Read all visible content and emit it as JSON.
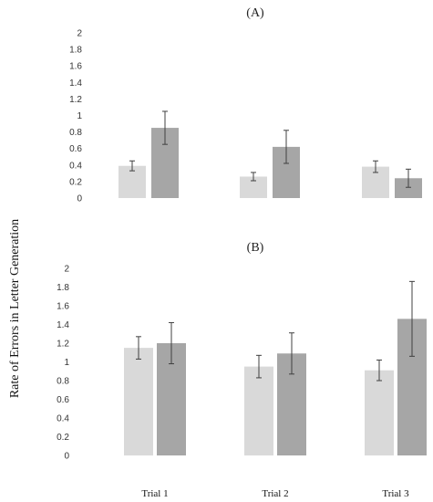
{
  "ylabel": "Rate of Errors in Letter Generation",
  "colors": {
    "series1": "#d9d9d9",
    "series2": "#a6a6a6",
    "errorbar": "#404040"
  },
  "chart_data": [
    {
      "type": "bar",
      "title": "(A)",
      "categories": [
        "Trial 1",
        "Trial 2",
        "Trial 3"
      ],
      "ylim": [
        0,
        2
      ],
      "yticks": [
        "0",
        "0.2",
        "0.4",
        "0.6",
        "0.8",
        "1",
        "1.2",
        "1.4",
        "1.6",
        "1.8",
        "2"
      ],
      "grid": false,
      "series": [
        {
          "values": [
            0.39,
            0.26,
            0.38
          ],
          "errors": [
            0.06,
            0.05,
            0.07
          ]
        },
        {
          "values": [
            0.85,
            0.62,
            0.24
          ],
          "errors": [
            0.2,
            0.2,
            0.11
          ]
        }
      ]
    },
    {
      "type": "bar",
      "title": "(B)",
      "categories": [
        "Trial 1",
        "Trial 2",
        "Trial 3"
      ],
      "ylim": [
        0,
        2
      ],
      "yticks": [
        "0",
        "0.2",
        "0.4",
        "0.6",
        "0.8",
        "1",
        "1.2",
        "1.4",
        "1.6",
        "1.8",
        "2"
      ],
      "grid": false,
      "series": [
        {
          "values": [
            1.15,
            0.95,
            0.91
          ],
          "errors": [
            0.12,
            0.12,
            0.11
          ]
        },
        {
          "values": [
            1.2,
            1.09,
            1.46
          ],
          "errors": [
            0.22,
            0.22,
            0.4
          ]
        }
      ]
    }
  ]
}
